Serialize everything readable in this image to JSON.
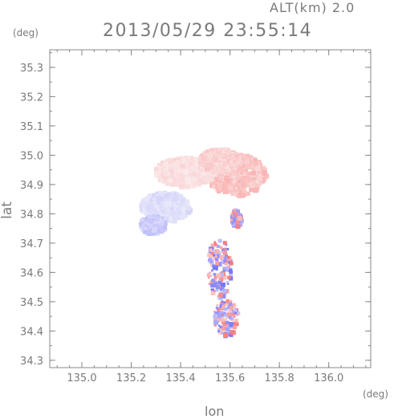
{
  "header": {
    "altitude_label": "ALT(km) 2.0",
    "timestamp": "2013/05/29 23:55:14"
  },
  "axes": {
    "y_unit": "(deg)",
    "x_unit": "(deg)",
    "y_label": "lat",
    "x_label": "lon",
    "x_ticks": [
      "135.0",
      "135.2",
      "135.4",
      "135.6",
      "135.8",
      "136.0"
    ],
    "y_ticks": [
      "34.3",
      "34.4",
      "34.5",
      "34.6",
      "34.7",
      "34.8",
      "34.9",
      "35.0",
      "35.1",
      "35.2",
      "35.3"
    ]
  },
  "colors": {
    "positive": "#f08a8a",
    "negative": "#8a8af0",
    "frame": "#888888",
    "text": "#7a7a7a"
  },
  "chart_data": {
    "type": "heatmap",
    "xlim": [
      134.87,
      136.17
    ],
    "ylim": [
      34.275,
      35.36
    ],
    "grid": false,
    "blobs": [
      {
        "lon": 135.62,
        "lat": 34.94,
        "rx": 0.12,
        "ry": 0.07,
        "sign": 1,
        "intensity": 0.45
      },
      {
        "lon": 135.41,
        "lat": 34.95,
        "rx": 0.12,
        "ry": 0.05,
        "sign": 1,
        "intensity": 0.25
      },
      {
        "lon": 135.55,
        "lat": 34.99,
        "rx": 0.08,
        "ry": 0.04,
        "sign": 1,
        "intensity": 0.35
      },
      {
        "lon": 135.33,
        "lat": 34.83,
        "rx": 0.1,
        "ry": 0.05,
        "sign": -1,
        "intensity": 0.25
      },
      {
        "lon": 135.28,
        "lat": 34.77,
        "rx": 0.05,
        "ry": 0.03,
        "sign": -1,
        "intensity": 0.4
      },
      {
        "lon": 135.55,
        "lat": 34.62,
        "rx": 0.05,
        "ry": 0.1,
        "sign": 0,
        "intensity": 0.6
      },
      {
        "lon": 135.58,
        "lat": 34.45,
        "rx": 0.05,
        "ry": 0.06,
        "sign": 0,
        "intensity": 0.6
      },
      {
        "lon": 135.62,
        "lat": 34.79,
        "rx": 0.02,
        "ry": 0.03,
        "sign": 0,
        "intensity": 0.6
      }
    ]
  }
}
